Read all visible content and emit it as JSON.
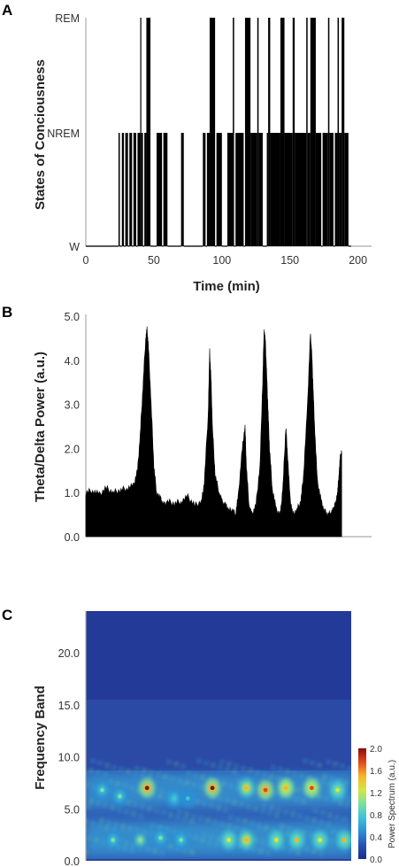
{
  "chart_data": [
    {
      "panel": "A",
      "type": "line",
      "ylabel": "States of Conciousness",
      "xlabel": "Time (min)",
      "xlim": [
        0,
        210
      ],
      "xticks": [
        "0",
        "50",
        "100",
        "150",
        "200"
      ],
      "xtick_values": [
        0,
        50,
        100,
        150,
        200
      ],
      "yticks": [
        "W",
        "NREM",
        "REM"
      ],
      "state_levels": {
        "W": 0,
        "NREM": 1,
        "REM": 2
      },
      "segments": [
        {
          "start": 0,
          "end": 24,
          "state": "W"
        },
        {
          "start": 24,
          "end": 25,
          "state": "NREM"
        },
        {
          "start": 25,
          "end": 26.5,
          "state": "W"
        },
        {
          "start": 26.5,
          "end": 28,
          "state": "NREM"
        },
        {
          "start": 28,
          "end": 29,
          "state": "W"
        },
        {
          "start": 29,
          "end": 31,
          "state": "NREM"
        },
        {
          "start": 31,
          "end": 32,
          "state": "W"
        },
        {
          "start": 32,
          "end": 34,
          "state": "NREM"
        },
        {
          "start": 34,
          "end": 35,
          "state": "W"
        },
        {
          "start": 35,
          "end": 37,
          "state": "NREM"
        },
        {
          "start": 37,
          "end": 38,
          "state": "W"
        },
        {
          "start": 38,
          "end": 40,
          "state": "NREM"
        },
        {
          "start": 40,
          "end": 40.8,
          "state": "REM"
        },
        {
          "start": 40.8,
          "end": 42,
          "state": "NREM"
        },
        {
          "start": 42,
          "end": 43,
          "state": "W"
        },
        {
          "start": 43,
          "end": 44.5,
          "state": "NREM"
        },
        {
          "start": 44.5,
          "end": 47.5,
          "state": "REM"
        },
        {
          "start": 47.5,
          "end": 52,
          "state": "W"
        },
        {
          "start": 52,
          "end": 56,
          "state": "NREM"
        },
        {
          "start": 56,
          "end": 57,
          "state": "W"
        },
        {
          "start": 57,
          "end": 60,
          "state": "NREM"
        },
        {
          "start": 60,
          "end": 70,
          "state": "W"
        },
        {
          "start": 70,
          "end": 72,
          "state": "NREM"
        },
        {
          "start": 72,
          "end": 86,
          "state": "W"
        },
        {
          "start": 86,
          "end": 88,
          "state": "NREM"
        },
        {
          "start": 88,
          "end": 89,
          "state": "W"
        },
        {
          "start": 89,
          "end": 91,
          "state": "NREM"
        },
        {
          "start": 91,
          "end": 95,
          "state": "REM"
        },
        {
          "start": 95,
          "end": 96,
          "state": "W"
        },
        {
          "start": 96,
          "end": 100,
          "state": "NREM"
        },
        {
          "start": 100,
          "end": 104,
          "state": "W"
        },
        {
          "start": 104,
          "end": 108,
          "state": "NREM"
        },
        {
          "start": 108,
          "end": 109,
          "state": "REM"
        },
        {
          "start": 109,
          "end": 110,
          "state": "W"
        },
        {
          "start": 110,
          "end": 116,
          "state": "NREM"
        },
        {
          "start": 116,
          "end": 117,
          "state": "W"
        },
        {
          "start": 117,
          "end": 121,
          "state": "REM"
        },
        {
          "start": 121,
          "end": 126,
          "state": "NREM"
        },
        {
          "start": 126,
          "end": 127,
          "state": "REM"
        },
        {
          "start": 127,
          "end": 130,
          "state": "NREM"
        },
        {
          "start": 130,
          "end": 133,
          "state": "W"
        },
        {
          "start": 133,
          "end": 134,
          "state": "NREM"
        },
        {
          "start": 134,
          "end": 135.5,
          "state": "REM"
        },
        {
          "start": 135.5,
          "end": 143,
          "state": "NREM"
        },
        {
          "start": 143,
          "end": 146,
          "state": "REM"
        },
        {
          "start": 146,
          "end": 152,
          "state": "NREM"
        },
        {
          "start": 152,
          "end": 153.5,
          "state": "REM"
        },
        {
          "start": 153.5,
          "end": 162,
          "state": "NREM"
        },
        {
          "start": 162,
          "end": 163,
          "state": "REM"
        },
        {
          "start": 163,
          "end": 165,
          "state": "NREM"
        },
        {
          "start": 165,
          "end": 169,
          "state": "REM"
        },
        {
          "start": 169,
          "end": 173,
          "state": "NREM"
        },
        {
          "start": 173,
          "end": 174,
          "state": "W"
        },
        {
          "start": 174,
          "end": 178,
          "state": "NREM"
        },
        {
          "start": 178,
          "end": 179,
          "state": "REM"
        },
        {
          "start": 179,
          "end": 182,
          "state": "NREM"
        },
        {
          "start": 182,
          "end": 183,
          "state": "W"
        },
        {
          "start": 183,
          "end": 185,
          "state": "NREM"
        },
        {
          "start": 185,
          "end": 186,
          "state": "REM"
        },
        {
          "start": 186,
          "end": 188,
          "state": "NREM"
        },
        {
          "start": 188,
          "end": 190,
          "state": "REM"
        },
        {
          "start": 190,
          "end": 193,
          "state": "NREM"
        },
        {
          "start": 193,
          "end": 195,
          "state": "W"
        }
      ]
    },
    {
      "panel": "B",
      "type": "area",
      "ylabel": "Theta/Delta Power (a.u.)",
      "ylim": [
        0,
        5
      ],
      "yticks": [
        "0.0",
        "1.0",
        "2.0",
        "3.0",
        "4.0",
        "5.0"
      ],
      "ytick_values": [
        0,
        1,
        2,
        3,
        4,
        5
      ],
      "xlim": [
        0,
        210
      ],
      "color": "#000000",
      "x": [
        0,
        5,
        10,
        15,
        20,
        25,
        30,
        35,
        38,
        40,
        42,
        44,
        45,
        46,
        48,
        50,
        52,
        55,
        58,
        60,
        65,
        70,
        75,
        80,
        85,
        87,
        90,
        91,
        92,
        93,
        95,
        98,
        100,
        103,
        105,
        108,
        110,
        112,
        115,
        117,
        118,
        120,
        122,
        125,
        128,
        130,
        131,
        132,
        133,
        134,
        135,
        137,
        140,
        143,
        145,
        147,
        148,
        150,
        152,
        155,
        158,
        160,
        163,
        165,
        166,
        167,
        168,
        170,
        173,
        175,
        178,
        180,
        182,
        183,
        184,
        185,
        186,
        187,
        188
      ],
      "y": [
        1.0,
        1.05,
        0.95,
        1.1,
        1.0,
        1.05,
        1.1,
        1.15,
        1.5,
        2.3,
        3.4,
        4.5,
        4.7,
        4.3,
        3.0,
        1.6,
        1.0,
        0.85,
        0.7,
        0.8,
        0.75,
        0.8,
        0.9,
        0.7,
        0.8,
        1.2,
        2.8,
        4.2,
        3.6,
        2.5,
        1.4,
        1.0,
        0.8,
        0.7,
        0.6,
        0.6,
        0.5,
        0.9,
        2.0,
        2.5,
        1.6,
        0.7,
        0.5,
        0.7,
        1.6,
        3.5,
        4.7,
        4.4,
        3.6,
        2.8,
        2.0,
        1.1,
        0.6,
        0.5,
        1.2,
        2.5,
        2.0,
        0.9,
        0.5,
        0.6,
        0.8,
        1.4,
        3.0,
        4.6,
        4.2,
        3.4,
        2.6,
        1.3,
        0.8,
        0.6,
        0.5,
        0.55,
        0.6,
        0.7,
        0.8,
        1.0,
        1.4,
        1.8,
        1.9
      ]
    },
    {
      "panel": "C",
      "type": "heatmap",
      "ylabel": "Frequency Band",
      "ylim": [
        0,
        24
      ],
      "yticks": [
        "0.0",
        "5.0",
        "10.0",
        "15.0",
        "20.0"
      ],
      "ytick_values": [
        0,
        5,
        10,
        15,
        20
      ],
      "xlim": [
        0,
        195
      ],
      "colorbar": {
        "label": "Power Spectrum (a.u.)",
        "range": [
          0,
          2
        ],
        "ticks": [
          "0.0",
          "0.4",
          "0.8",
          "1.2",
          "1.6",
          "2.0"
        ],
        "tick_values": [
          0,
          0.4,
          0.8,
          1.2,
          1.6,
          2.0
        ],
        "colors": [
          "#1c2a8c",
          "#2453b8",
          "#2c8fd6",
          "#3cc3d6",
          "#7be0a0",
          "#d6e640",
          "#f7b526",
          "#e4461f",
          "#8a0d0d"
        ]
      },
      "hot_spots": [
        {
          "t": 45,
          "f": 7.0,
          "p": 2.0
        },
        {
          "t": 93,
          "f": 7.0,
          "p": 2.0
        },
        {
          "t": 118,
          "f": 7.0,
          "p": 1.5
        },
        {
          "t": 132,
          "f": 6.8,
          "p": 1.8
        },
        {
          "t": 147,
          "f": 7.0,
          "p": 1.6
        },
        {
          "t": 166,
          "f": 7.0,
          "p": 1.7
        },
        {
          "t": 185,
          "f": 6.8,
          "p": 1.3
        },
        {
          "t": 12,
          "f": 6.8,
          "p": 1.0
        },
        {
          "t": 25,
          "f": 6.2,
          "p": 0.9
        },
        {
          "t": 65,
          "f": 6.0,
          "p": 0.8
        },
        {
          "t": 75,
          "f": 6.0,
          "p": 0.7
        },
        {
          "t": 20,
          "f": 2.0,
          "p": 1.0
        },
        {
          "t": 40,
          "f": 2.0,
          "p": 1.1
        },
        {
          "t": 55,
          "f": 2.2,
          "p": 1.0
        },
        {
          "t": 70,
          "f": 2.0,
          "p": 0.9
        },
        {
          "t": 105,
          "f": 2.0,
          "p": 1.2
        },
        {
          "t": 118,
          "f": 2.0,
          "p": 1.5
        },
        {
          "t": 140,
          "f": 2.0,
          "p": 1.3
        },
        {
          "t": 155,
          "f": 2.0,
          "p": 1.4
        },
        {
          "t": 172,
          "f": 2.0,
          "p": 1.3
        },
        {
          "t": 190,
          "f": 2.0,
          "p": 1.4
        }
      ]
    }
  ]
}
